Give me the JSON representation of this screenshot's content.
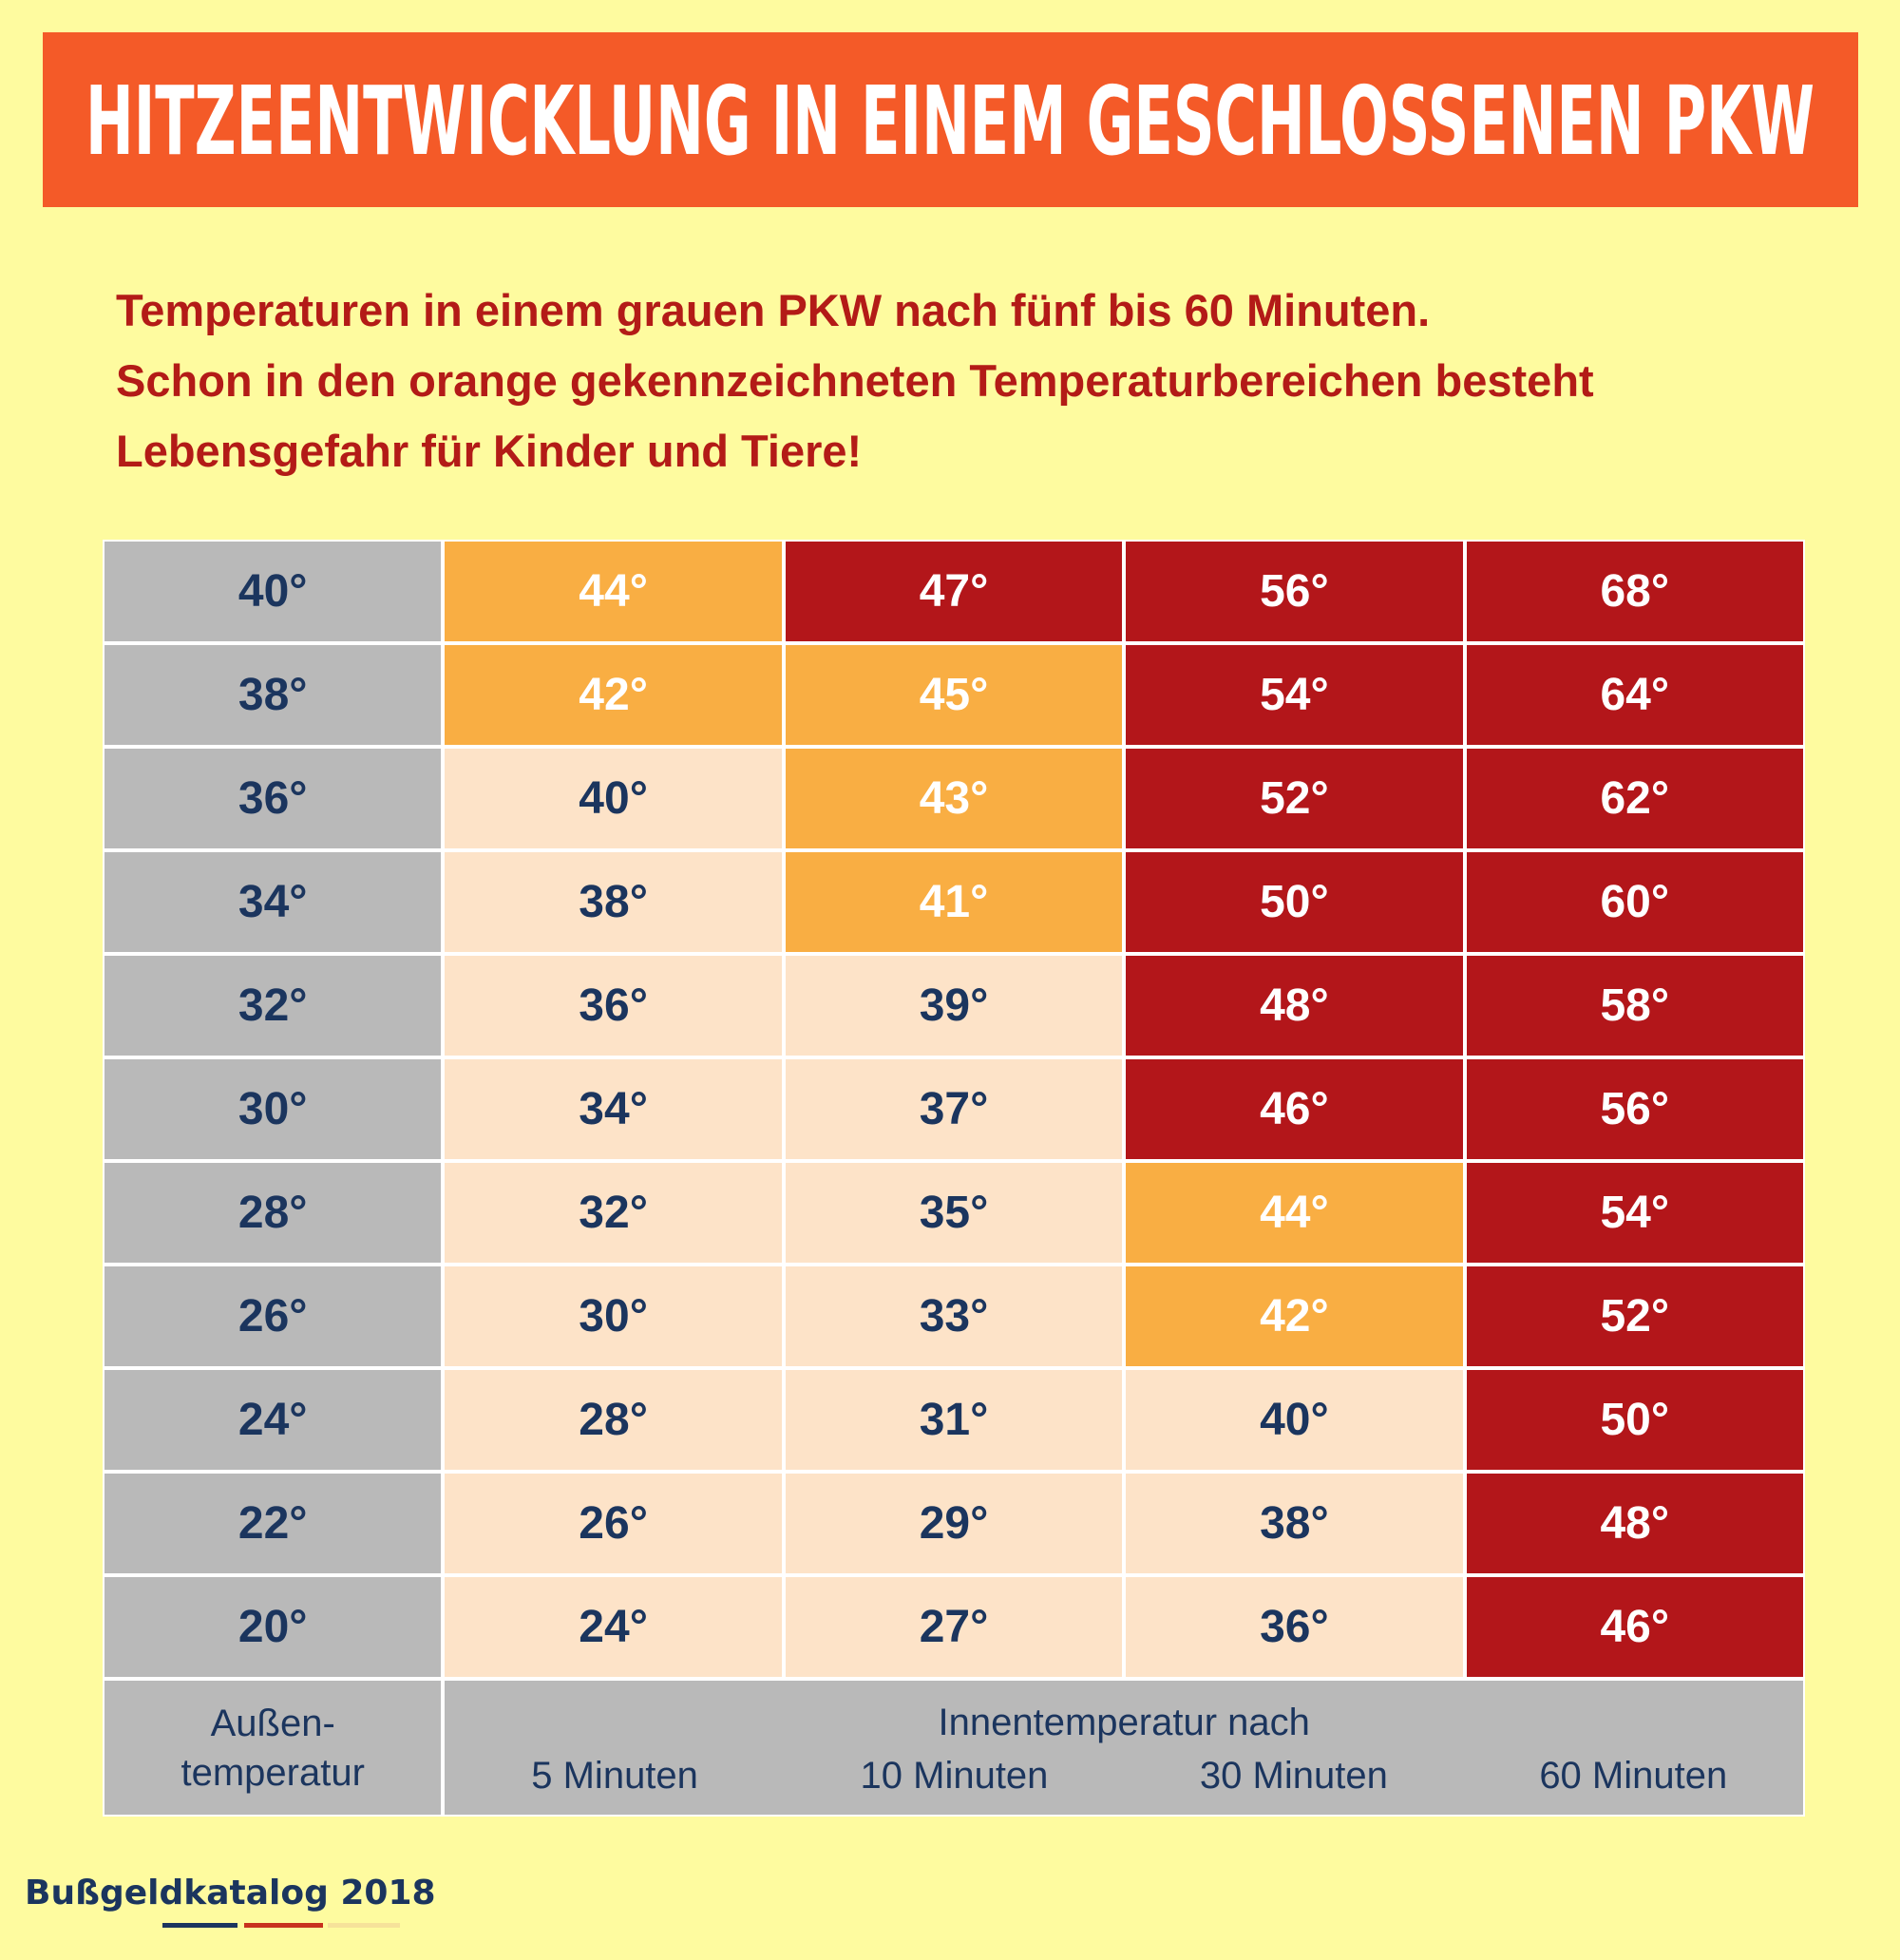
{
  "title": "HITZEENTWICKLUNG IN EINEM GESCHLOSSENEN PKW",
  "subtitle": [
    "Temperaturen in einem grauen PKW nach fünf bis 60 Minuten.",
    "Schon in den orange gekennzeichneten Temperaturbereichen besteht",
    "Lebensgefahr für Kinder und Tiere!"
  ],
  "table": {
    "rows": [
      {
        "cells": [
          "40°",
          "44°",
          "47°",
          "56°",
          "68°"
        ],
        "colors": [
          "#b9b9b9",
          "#f9ae43",
          "#b3161a",
          "#b3161a",
          "#b3161a"
        ]
      },
      {
        "cells": [
          "38°",
          "42°",
          "45°",
          "54°",
          "64°"
        ],
        "colors": [
          "#b9b9b9",
          "#f9ae43",
          "#f9ae43",
          "#b3161a",
          "#b3161a"
        ]
      },
      {
        "cells": [
          "36°",
          "40°",
          "43°",
          "52°",
          "62°"
        ],
        "colors": [
          "#b9b9b9",
          "#fde3c8",
          "#f9ae43",
          "#b3161a",
          "#b3161a"
        ]
      },
      {
        "cells": [
          "34°",
          "38°",
          "41°",
          "50°",
          "60°"
        ],
        "colors": [
          "#b9b9b9",
          "#fde3c8",
          "#f9ae43",
          "#b3161a",
          "#b3161a"
        ]
      },
      {
        "cells": [
          "32°",
          "36°",
          "39°",
          "48°",
          "58°"
        ],
        "colors": [
          "#b9b9b9",
          "#fde3c8",
          "#fde3c8",
          "#b3161a",
          "#b3161a"
        ]
      },
      {
        "cells": [
          "30°",
          "34°",
          "37°",
          "46°",
          "56°"
        ],
        "colors": [
          "#b9b9b9",
          "#fde3c8",
          "#fde3c8",
          "#b3161a",
          "#b3161a"
        ]
      },
      {
        "cells": [
          "28°",
          "32°",
          "35°",
          "44°",
          "54°"
        ],
        "colors": [
          "#b9b9b9",
          "#fde3c8",
          "#fde3c8",
          "#f9ae43",
          "#b3161a"
        ]
      },
      {
        "cells": [
          "26°",
          "30°",
          "33°",
          "42°",
          "52°"
        ],
        "colors": [
          "#b9b9b9",
          "#fde3c8",
          "#fde3c8",
          "#f9ae43",
          "#b3161a"
        ]
      },
      {
        "cells": [
          "24°",
          "28°",
          "31°",
          "40°",
          "50°"
        ],
        "colors": [
          "#b9b9b9",
          "#fde3c8",
          "#fde3c8",
          "#fde3c8",
          "#b3161a"
        ]
      },
      {
        "cells": [
          "22°",
          "26°",
          "29°",
          "38°",
          "48°"
        ],
        "colors": [
          "#b9b9b9",
          "#fde3c8",
          "#fde3c8",
          "#fde3c8",
          "#b3161a"
        ]
      },
      {
        "cells": [
          "20°",
          "24°",
          "27°",
          "36°",
          "46°"
        ],
        "colors": [
          "#b9b9b9",
          "#fde3c8",
          "#fde3c8",
          "#fde3c8",
          "#b3161a"
        ]
      }
    ],
    "footer": {
      "outside": [
        "Außen-",
        "temperatur"
      ],
      "inside": "Innentemperatur nach",
      "columns": [
        "5 Minuten",
        "10 Minuten",
        "30 Minuten",
        "60 Minuten"
      ]
    }
  },
  "source": "Bußgeldkatalog 2018"
}
